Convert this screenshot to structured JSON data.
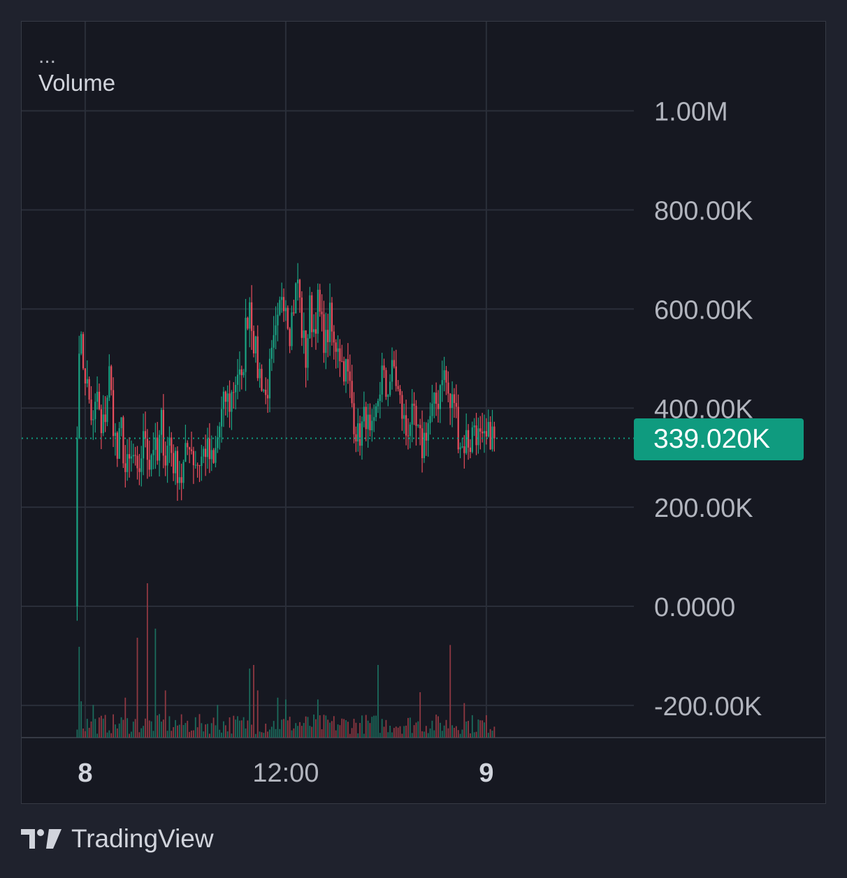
{
  "legend": {
    "menu_label": "...",
    "indicator_name": "Volume"
  },
  "last_price_label": "339.020K",
  "brand": {
    "name": "TradingView",
    "logo_icon": "tradingview-logo-icon"
  },
  "colors": {
    "up": "#1aa383",
    "down": "#e84d5c",
    "volume_up": "#1b6b5c",
    "volume_down": "#8f3842",
    "last_price": "#0f9b7f",
    "grid": "#2a2e39",
    "axis_text": "#b2b5be"
  },
  "chart_data": {
    "type": "candlestick",
    "title": "",
    "xlabel": "",
    "ylabel": "",
    "grid": true,
    "y_ticks": [
      1000000,
      800000,
      600000,
      400000,
      200000,
      0,
      -200000
    ],
    "y_tick_labels": [
      "1.00M",
      "800.00K",
      "600.00K",
      "400.00K",
      "200.00K",
      "0.0000",
      "-200.00K"
    ],
    "ylim": [
      -265000,
      1180000
    ],
    "x_ticks": [
      {
        "label": "8",
        "bar": 4,
        "bold": true
      },
      {
        "label": "12:00",
        "bar": 104,
        "bold": false
      },
      {
        "label": "9",
        "bar": 204,
        "bold": true
      }
    ],
    "last_price": 339020,
    "session_start_bar": 0,
    "bar_count": 220,
    "close_waypoints": [
      [
        0,
        339000
      ],
      [
        1,
        545000
      ],
      [
        4,
        470000
      ],
      [
        8,
        360000
      ],
      [
        10,
        430000
      ],
      [
        12,
        340000
      ],
      [
        14,
        390000
      ],
      [
        16,
        470000
      ],
      [
        18,
        375000
      ],
      [
        20,
        300000
      ],
      [
        22,
        360000
      ],
      [
        24,
        270000
      ],
      [
        28,
        300000
      ],
      [
        30,
        250000
      ],
      [
        32,
        310000
      ],
      [
        34,
        350000
      ],
      [
        36,
        290000
      ],
      [
        38,
        330000
      ],
      [
        40,
        290000
      ],
      [
        42,
        370000
      ],
      [
        44,
        300000
      ],
      [
        46,
        340000
      ],
      [
        48,
        290000
      ],
      [
        50,
        280000
      ],
      [
        52,
        260000
      ],
      [
        54,
        300000
      ],
      [
        56,
        340000
      ],
      [
        58,
        300000
      ],
      [
        60,
        290000
      ],
      [
        62,
        300000
      ],
      [
        64,
        320000
      ],
      [
        66,
        300000
      ],
      [
        68,
        280000
      ],
      [
        70,
        340000
      ],
      [
        72,
        385000
      ],
      [
        74,
        420000
      ],
      [
        76,
        410000
      ],
      [
        80,
        475000
      ],
      [
        82,
        440000
      ],
      [
        84,
        560000
      ],
      [
        86,
        620000
      ],
      [
        88,
        540000
      ],
      [
        90,
        480000
      ],
      [
        92,
        460000
      ],
      [
        94,
        420000
      ],
      [
        96,
        470000
      ],
      [
        98,
        520000
      ],
      [
        100,
        560000
      ],
      [
        102,
        640000
      ],
      [
        104,
        620000
      ],
      [
        106,
        560000
      ],
      [
        108,
        610000
      ],
      [
        110,
        660000
      ],
      [
        112,
        560000
      ],
      [
        114,
        500000
      ],
      [
        116,
        600000
      ],
      [
        118,
        560000
      ],
      [
        120,
        610000
      ],
      [
        122,
        560000
      ],
      [
        124,
        530000
      ],
      [
        126,
        580000
      ],
      [
        128,
        520000
      ],
      [
        130,
        540000
      ],
      [
        132,
        490000
      ],
      [
        134,
        480000
      ],
      [
        136,
        440000
      ],
      [
        138,
        380000
      ],
      [
        140,
        340000
      ],
      [
        142,
        360000
      ],
      [
        144,
        390000
      ],
      [
        146,
        330000
      ],
      [
        148,
        350000
      ],
      [
        150,
        420000
      ],
      [
        152,
        470000
      ],
      [
        154,
        430000
      ],
      [
        156,
        460000
      ],
      [
        158,
        480000
      ],
      [
        160,
        430000
      ],
      [
        162,
        390000
      ],
      [
        164,
        350000
      ],
      [
        166,
        380000
      ],
      [
        168,
        370000
      ],
      [
        170,
        340000
      ],
      [
        172,
        320000
      ],
      [
        174,
        360000
      ],
      [
        176,
        380000
      ],
      [
        178,
        400000
      ],
      [
        180,
        420000
      ],
      [
        182,
        480000
      ],
      [
        184,
        450000
      ],
      [
        186,
        400000
      ],
      [
        188,
        420000
      ],
      [
        190,
        350000
      ],
      [
        192,
        320000
      ],
      [
        194,
        340000
      ],
      [
        196,
        330000
      ],
      [
        198,
        370000
      ],
      [
        200,
        340000
      ],
      [
        202,
        320000
      ],
      [
        204,
        330000
      ],
      [
        206,
        350000
      ],
      [
        208,
        339020
      ]
    ],
    "volume_scale_max": 1000000,
    "volume_spikes": [
      [
        1,
        500000
      ],
      [
        2,
        200000
      ],
      [
        8,
        180000
      ],
      [
        24,
        220000
      ],
      [
        30,
        550000
      ],
      [
        35,
        850000
      ],
      [
        39,
        600000
      ],
      [
        44,
        260000
      ],
      [
        70,
        180000
      ],
      [
        86,
        380000
      ],
      [
        88,
        400000
      ],
      [
        90,
        260000
      ],
      [
        100,
        220000
      ],
      [
        104,
        210000
      ],
      [
        120,
        210000
      ],
      [
        150,
        400000
      ],
      [
        171,
        250000
      ],
      [
        186,
        510000
      ],
      [
        193,
        190000
      ]
    ]
  }
}
